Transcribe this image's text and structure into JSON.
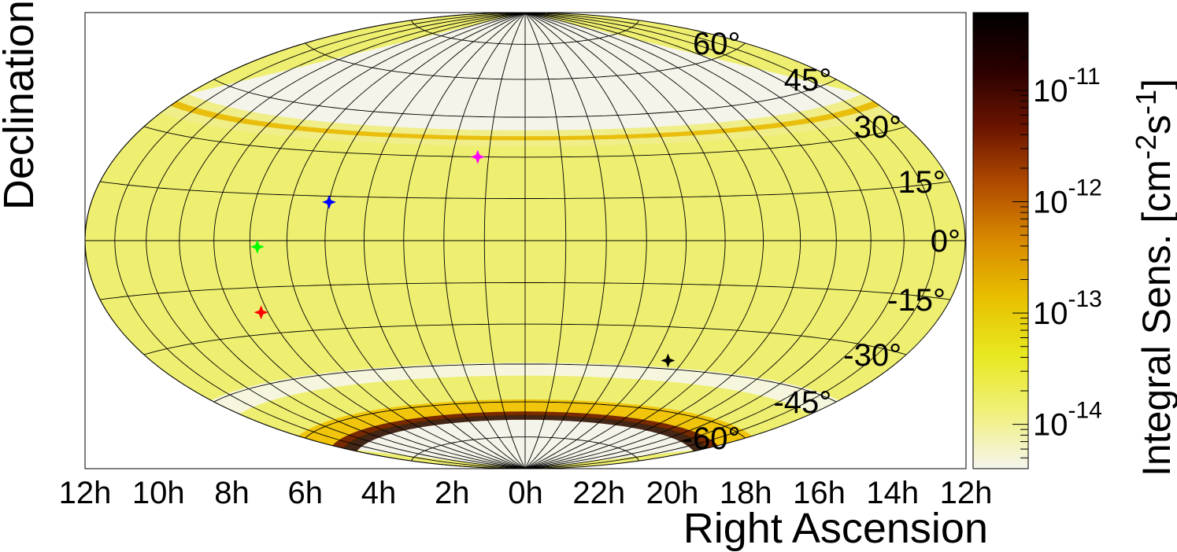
{
  "chart_data": {
    "type": "heatmap",
    "projection": "Hammer-Aitoff",
    "xlabel": "Right Ascension",
    "ylabel": "Declination",
    "colorbar_label": "Integral Sens. [cm^-2 s^-1]",
    "colorbar_scale": "log",
    "colorbar_range": [
      4e-15,
      5e-11
    ],
    "colorbar_ticks": [
      {
        "base": "10",
        "exp": "-11",
        "value": 1e-11
      },
      {
        "base": "10",
        "exp": "-12",
        "value": 1e-12
      },
      {
        "base": "10",
        "exp": "-13",
        "value": 1e-13
      },
      {
        "base": "10",
        "exp": "-14",
        "value": 1e-14
      }
    ],
    "colorbar_colors": [
      "#f5f5ee",
      "#f0f07a",
      "#e8e820",
      "#e8c000",
      "#d88a00",
      "#b04a00",
      "#6a1400",
      "#2a0000",
      "#000000"
    ],
    "ra_ticks": [
      "12h",
      "10h",
      "8h",
      "6h",
      "4h",
      "2h",
      "0h",
      "22h",
      "20h",
      "18h",
      "16h",
      "14h",
      "12h"
    ],
    "dec_ticks": [
      {
        "label": "60°",
        "dec": 60
      },
      {
        "label": "45°",
        "dec": 45
      },
      {
        "label": "30°",
        "dec": 30
      },
      {
        "label": "15°",
        "dec": 15
      },
      {
        "label": "0°",
        "dec": 0
      },
      {
        "label": "-15°",
        "dec": -15
      },
      {
        "label": "-30°",
        "dec": -30
      },
      {
        "label": "-45°",
        "dec": -45
      },
      {
        "label": "-60°",
        "dec": -60
      }
    ],
    "sensitivity_map": {
      "baseline_color": "#eeee70",
      "bands": [
        {
          "dec_center": 37,
          "width": 1.5,
          "color": "#e8b800",
          "note": "thin ring"
        },
        {
          "dec_center": -47,
          "width": 5,
          "color": "#f6f6ea"
        },
        {
          "dec_center": -62,
          "width": 6,
          "color": "#f0c000"
        },
        {
          "dec_center": -66,
          "width": 3,
          "color": "#301000"
        }
      ]
    },
    "sources": [
      {
        "ra_h": 1.3,
        "dec": 30,
        "color": "#ff00ff"
      },
      {
        "ra_h": 5.0,
        "dec": 13,
        "color": "#0000ff"
      },
      {
        "ra_h": 6.8,
        "dec": -2,
        "color": "#00ff00"
      },
      {
        "ra_h": 7.2,
        "dec": -23,
        "color": "#ff0000"
      },
      {
        "ra_h": 19.5,
        "dec": -42,
        "color": "#000000"
      }
    ]
  }
}
